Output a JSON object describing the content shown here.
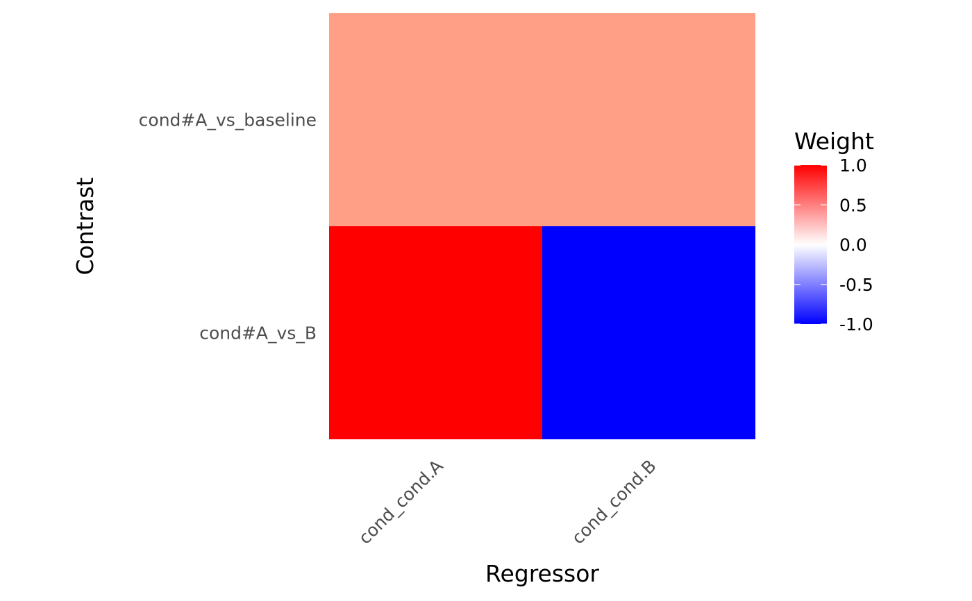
{
  "chart_data": {
    "type": "heatmap",
    "x_categories": [
      "cond_cond.A",
      "cond_cond.B"
    ],
    "y_categories": [
      "cond#A_vs_baseline",
      "cond#A_vs_B"
    ],
    "values": [
      {
        "x": "cond_cond.A",
        "y": "cond#A_vs_baseline",
        "value": 0.5
      },
      {
        "x": "cond_cond.B",
        "y": "cond#A_vs_baseline",
        "value": 0.5
      },
      {
        "x": "cond_cond.A",
        "y": "cond#A_vs_B",
        "value": 1.0
      },
      {
        "x": "cond_cond.B",
        "y": "cond#A_vs_B",
        "value": -1.0
      }
    ],
    "xlabel": "Regressor",
    "ylabel": "Contrast",
    "legend": {
      "title": "Weight",
      "position": "right",
      "limits": [
        -1.0,
        1.0
      ],
      "ticks": [
        1.0,
        0.5,
        0.0,
        -0.5,
        -1.0
      ],
      "tick_labels": [
        "1.0",
        "0.5",
        "0.0",
        "-0.5",
        "-1.0"
      ],
      "colors": {
        "low": "#0000ff",
        "mid": "#ffffff",
        "high": "#ff0000"
      }
    },
    "merged_rows": [
      "cond#A_vs_baseline"
    ]
  }
}
